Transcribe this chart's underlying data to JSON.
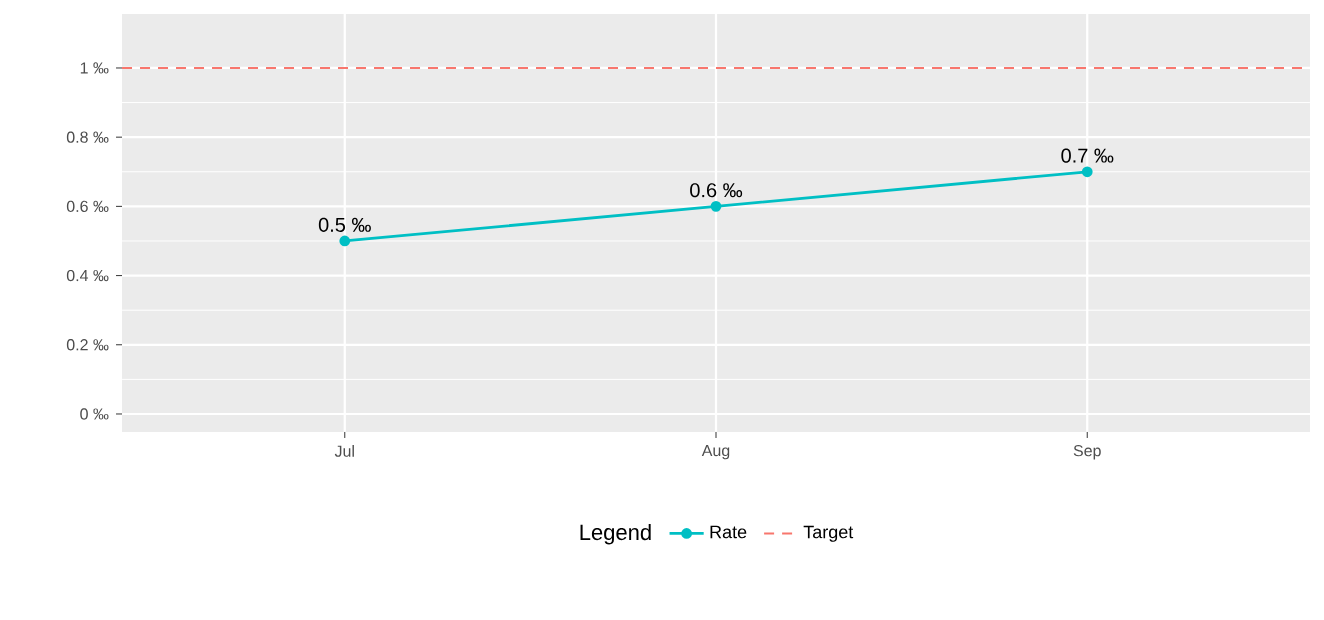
{
  "chart_data": {
    "type": "line",
    "categories": [
      "Jul",
      "Aug",
      "Sep"
    ],
    "series": [
      {
        "name": "Rate",
        "color": "#00bfc4",
        "values": [
          0.5,
          0.6,
          0.7
        ],
        "value_labels": [
          "0.5 ‰",
          "0.6 ‰",
          "0.7 ‰"
        ]
      }
    ],
    "ylim": [
      -0.052,
      1.156
    ],
    "yticks": [
      {
        "value": 0,
        "label": "0 ‰"
      },
      {
        "value": 0.2,
        "label": "0.2 ‰"
      },
      {
        "value": 0.4,
        "label": "0.4 ‰"
      },
      {
        "value": 0.6,
        "label": "0.6 ‰"
      },
      {
        "value": 0.8,
        "label": "0.8 ‰"
      },
      {
        "value": 1,
        "label": "1 ‰"
      }
    ],
    "ref_lines": [
      {
        "axis": "y",
        "value": 1,
        "label": "Target",
        "color": "#f8766d",
        "line_style": "dashed"
      }
    ],
    "legend_title": "Legend",
    "legend": "bottom",
    "grid": true,
    "marker": "circle",
    "line_style": "solid"
  }
}
